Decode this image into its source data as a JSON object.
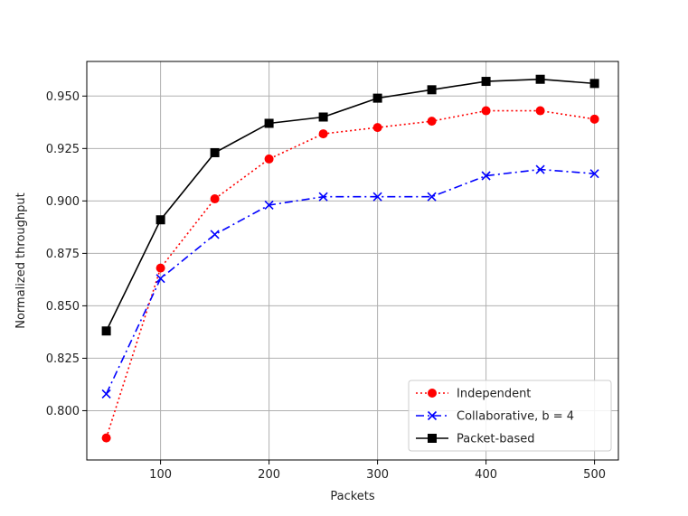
{
  "chart_data": {
    "type": "line",
    "xlabel": "Packets",
    "ylabel": "Normalized throughput",
    "xlim": [
      32,
      522
    ],
    "ylim": [
      0.7765,
      0.9665
    ],
    "xticks": [
      100,
      200,
      300,
      400,
      500
    ],
    "yticks": [
      0.8,
      0.825,
      0.85,
      0.875,
      0.9,
      0.925,
      0.95
    ],
    "ytick_labels": [
      "0.800",
      "0.825",
      "0.850",
      "0.875",
      "0.900",
      "0.925",
      "0.950"
    ],
    "grid": true,
    "legend_position": "lower-right",
    "x": [
      50,
      100,
      150,
      200,
      250,
      300,
      350,
      400,
      450,
      500
    ],
    "series": [
      {
        "name": "Independent",
        "color": "#ff0000",
        "marker": "circle",
        "linestyle": "dotted",
        "values": [
          0.787,
          0.868,
          0.901,
          0.92,
          0.932,
          0.935,
          0.938,
          0.943,
          0.943,
          0.939
        ]
      },
      {
        "name": "Collaborative, b = 4",
        "color": "#0000ff",
        "marker": "x",
        "linestyle": "dashdot",
        "values": [
          0.808,
          0.863,
          0.884,
          0.898,
          0.902,
          0.902,
          0.902,
          0.912,
          0.915,
          0.913
        ]
      },
      {
        "name": "Packet-based",
        "color": "#000000",
        "marker": "square",
        "linestyle": "solid",
        "values": [
          0.838,
          0.891,
          0.923,
          0.937,
          0.94,
          0.949,
          0.953,
          0.957,
          0.958,
          0.956
        ]
      }
    ]
  }
}
